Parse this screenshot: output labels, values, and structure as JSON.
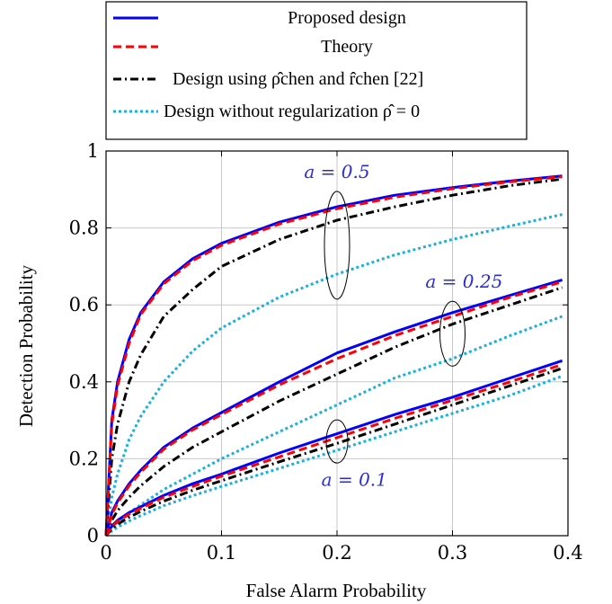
{
  "chart_data": {
    "type": "line",
    "xlabel": "False Alarm Probability",
    "ylabel": "Detection Probability",
    "xlim": [
      0,
      0.4
    ],
    "ylim": [
      0,
      1
    ],
    "xticks": [
      "0",
      "0.1",
      "0.2",
      "0.3",
      "0.4"
    ],
    "yticks": [
      "0",
      "0.2",
      "0.4",
      "0.6",
      "0.8",
      "1"
    ],
    "grid": true,
    "legend_position": "top",
    "legend": [
      {
        "label": "Proposed design",
        "color": "#0000ff",
        "style": "solid"
      },
      {
        "label": "Theory",
        "color": "#ff0000",
        "style": "dashed"
      },
      {
        "label": "Design using ρ̂chen and r̂chen [22]",
        "color": "#000000",
        "style": "dashdot"
      },
      {
        "label": "Design without regularization ρ̂ = 0",
        "color": "#1ab0e6",
        "style": "dotted"
      }
    ],
    "annotations": [
      {
        "text": "a = 0.5",
        "x": 0.205,
        "y": 0.765
      },
      {
        "text": "a = 0.25",
        "x": 0.3,
        "y": 0.53
      },
      {
        "text": "a = 0.1",
        "x": 0.2,
        "y": 0.24
      }
    ],
    "x": [
      0,
      0.005,
      0.01,
      0.02,
      0.03,
      0.05,
      0.075,
      0.1,
      0.15,
      0.2,
      0.25,
      0.3,
      0.35,
      0.395
    ],
    "groups": [
      {
        "a": "0.5",
        "series": [
          {
            "legend": "Proposed design",
            "values": [
              0,
              0.3,
              0.4,
              0.51,
              0.58,
              0.66,
              0.72,
              0.76,
              0.815,
              0.855,
              0.885,
              0.905,
              0.922,
              0.935
            ]
          },
          {
            "legend": "Theory",
            "values": [
              0,
              0.29,
              0.39,
              0.5,
              0.575,
              0.655,
              0.715,
              0.755,
              0.81,
              0.85,
              0.88,
              0.902,
              0.92,
              0.933
            ]
          },
          {
            "legend": "Design using ρ̂chen and r̂chen [22]",
            "values": [
              0,
              0.2,
              0.29,
              0.4,
              0.47,
              0.57,
              0.64,
              0.7,
              0.77,
              0.82,
              0.855,
              0.885,
              0.91,
              0.927
            ]
          },
          {
            "legend": "Design without regularization ρ̂ = 0",
            "values": [
              0,
              0.1,
              0.16,
              0.25,
              0.31,
              0.4,
              0.48,
              0.54,
              0.62,
              0.68,
              0.73,
              0.77,
              0.805,
              0.835
            ]
          }
        ]
      },
      {
        "a": "0.25",
        "series": [
          {
            "legend": "Proposed design",
            "values": [
              0,
              0.06,
              0.09,
              0.135,
              0.17,
              0.23,
              0.28,
              0.32,
              0.4,
              0.475,
              0.53,
              0.58,
              0.625,
              0.665
            ]
          },
          {
            "legend": "Theory",
            "values": [
              0,
              0.055,
              0.085,
              0.13,
              0.165,
              0.225,
              0.275,
              0.315,
              0.392,
              0.46,
              0.52,
              0.57,
              0.62,
              0.66
            ]
          },
          {
            "legend": "Design using ρ̂chen and r̂chen [22]",
            "values": [
              0,
              0.04,
              0.065,
              0.1,
              0.13,
              0.18,
              0.23,
              0.27,
              0.35,
              0.42,
              0.49,
              0.55,
              0.6,
              0.645
            ]
          },
          {
            "legend": "Design without regularization ρ̂ = 0",
            "values": [
              0,
              0.02,
              0.035,
              0.06,
              0.08,
              0.12,
              0.16,
              0.2,
              0.27,
              0.34,
              0.41,
              0.46,
              0.52,
              0.57
            ]
          }
        ]
      },
      {
        "a": "0.1",
        "series": [
          {
            "legend": "Proposed design",
            "values": [
              0,
              0.025,
              0.04,
              0.06,
              0.075,
              0.105,
              0.135,
              0.16,
              0.215,
              0.265,
              0.315,
              0.36,
              0.41,
              0.455
            ]
          },
          {
            "legend": "Theory",
            "values": [
              0,
              0.022,
              0.037,
              0.056,
              0.071,
              0.1,
              0.128,
              0.155,
              0.205,
              0.255,
              0.305,
              0.352,
              0.4,
              0.445
            ]
          },
          {
            "legend": "Design using ρ̂chen and r̂chen [22]",
            "values": [
              0,
              0.018,
              0.03,
              0.048,
              0.063,
              0.09,
              0.118,
              0.143,
              0.192,
              0.24,
              0.29,
              0.34,
              0.39,
              0.435
            ]
          },
          {
            "legend": "Design without regularization ρ̂ = 0",
            "values": [
              0,
              0.012,
              0.022,
              0.038,
              0.052,
              0.078,
              0.104,
              0.128,
              0.175,
              0.222,
              0.27,
              0.318,
              0.365,
              0.415
            ]
          }
        ]
      }
    ]
  }
}
